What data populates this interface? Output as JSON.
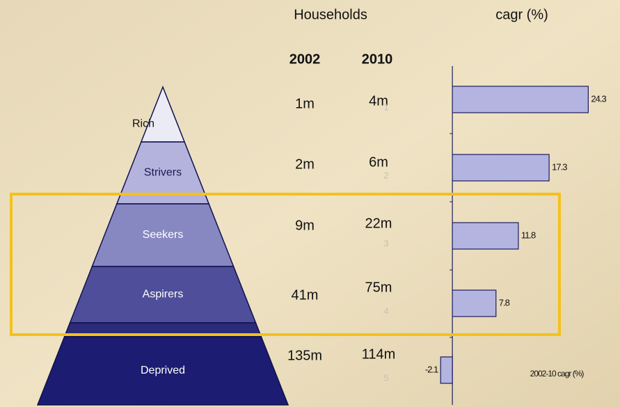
{
  "headers": {
    "households": "Households",
    "cagr": "cagr (%)"
  },
  "years": [
    "2002",
    "2010"
  ],
  "segments": [
    {
      "name": "Rich",
      "h2002": "1m",
      "h2010": "4m"
    },
    {
      "name": "Strivers",
      "h2002": "2m",
      "h2010": "6m"
    },
    {
      "name": "Seekers",
      "h2002": "9m",
      "h2010": "22m"
    },
    {
      "name": "Aspirers",
      "h2002": "41m",
      "h2010": "75m"
    },
    {
      "name": "Deprived",
      "h2002": "135m",
      "h2010": "114m"
    }
  ],
  "chart_data": {
    "type": "bar",
    "orientation": "horizontal",
    "categories": [
      "1",
      "2",
      "3",
      "4",
      "5"
    ],
    "series": [
      {
        "name": "2002-10 cagr (%)",
        "color": "#b4b4e0",
        "values": [
          24.3,
          17.3,
          11.8,
          7.8,
          -2.1
        ],
        "value_labels": [
          "24.3",
          "17.3",
          "11.8",
          "7.8",
          "-2.1"
        ]
      }
    ],
    "xlim": [
      -3,
      25
    ]
  }
}
